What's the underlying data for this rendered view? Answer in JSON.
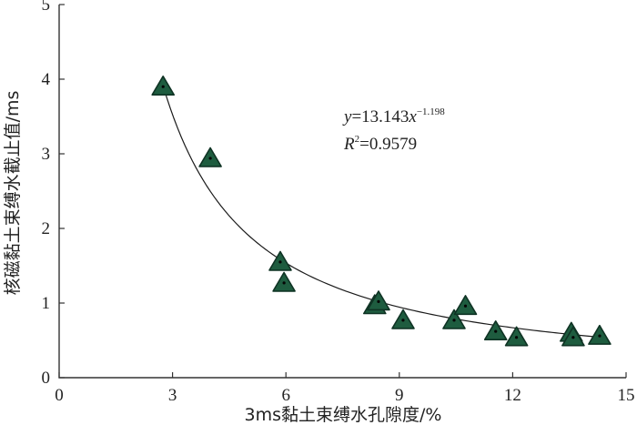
{
  "chart_data": {
    "type": "scatter",
    "xlabel": "3ms黏土束缚水孔隙度/%",
    "ylabel": "核磁黏土束缚水截止值/ms",
    "xlim": [
      0,
      15
    ],
    "ylim": [
      0,
      5
    ],
    "x_ticks": [
      0,
      3,
      6,
      9,
      12,
      15
    ],
    "y_ticks": [
      0,
      1,
      2,
      3,
      4,
      5
    ],
    "marker_color": "#1e5c3f",
    "points": [
      {
        "x": 2.75,
        "y": 3.9
      },
      {
        "x": 4.0,
        "y": 2.94
      },
      {
        "x": 5.85,
        "y": 1.55
      },
      {
        "x": 5.95,
        "y": 1.27
      },
      {
        "x": 8.35,
        "y": 0.97
      },
      {
        "x": 8.45,
        "y": 1.02
      },
      {
        "x": 9.1,
        "y": 0.77
      },
      {
        "x": 10.45,
        "y": 0.77
      },
      {
        "x": 10.75,
        "y": 0.96
      },
      {
        "x": 11.55,
        "y": 0.62
      },
      {
        "x": 12.1,
        "y": 0.54
      },
      {
        "x": 13.55,
        "y": 0.6
      },
      {
        "x": 13.6,
        "y": 0.54
      },
      {
        "x": 14.3,
        "y": 0.56
      }
    ],
    "fit": {
      "a": 13.143,
      "b": -1.198,
      "x_range": [
        2.75,
        14.3
      ]
    },
    "equation": {
      "y_var": "y",
      "eq_body": "=13.143",
      "x_var": "x",
      "exponent": "−1.198",
      "r_var": "R",
      "r_sup": "2",
      "r_value": "=0.9579"
    }
  }
}
